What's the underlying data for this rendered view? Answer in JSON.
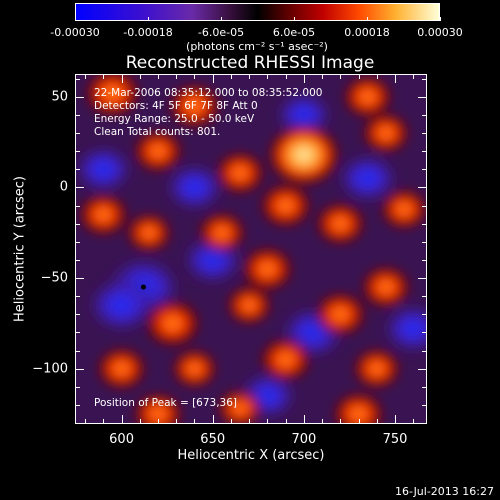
{
  "chart_data": {
    "type": "heatmap",
    "title": "Reconstructed RHESSI Image",
    "xlabel": "Heliocentric X (arcsec)",
    "ylabel": "Heliocentric Y (arcsec)",
    "xlim": [
      575,
      767
    ],
    "ylim": [
      -130,
      62
    ],
    "xticks": [
      "600",
      "650",
      "700",
      "750"
    ],
    "yticks": [
      "50",
      "0",
      "−50",
      "−100"
    ],
    "xtick_values": [
      600,
      650,
      700,
      750
    ],
    "ytick_values": [
      50,
      0,
      -50,
      -100
    ],
    "colorbar": {
      "range": [
        -0.0003,
        0.0003
      ],
      "tick_labels": [
        "-0.00030",
        "-0.00018",
        "-6.0e-05",
        "6.0e-05",
        "0.00018",
        "0.00030"
      ],
      "tick_values": [
        -0.0003,
        -0.00018,
        -6e-05,
        6e-05,
        0.00018,
        0.0003
      ],
      "unit_label": "(photons cm⁻² s⁻¹ asec⁻²)"
    },
    "annotations": {
      "time_range": "22-Mar-2006 08:35:12.000 to 08:35:52.000",
      "detectors": "Detectors: 4F 5F 6F 7F 8F  Att 0",
      "energy_range": "Energy Range: 25.0 - 50.0 keV",
      "method": "Clean      Total counts: 801.",
      "peak": "Position of Peak = [673,36]"
    },
    "peak_position": [
      673,
      36
    ],
    "blobs": [
      {
        "x": 700,
        "y": 18,
        "v": 1.0
      },
      {
        "x": 595,
        "y": 52,
        "v": 0.65
      },
      {
        "x": 640,
        "y": 45,
        "v": 0.55
      },
      {
        "x": 735,
        "y": 50,
        "v": 0.5
      },
      {
        "x": 620,
        "y": 20,
        "v": 0.5
      },
      {
        "x": 745,
        "y": 30,
        "v": 0.45
      },
      {
        "x": 665,
        "y": 8,
        "v": 0.5
      },
      {
        "x": 690,
        "y": -10,
        "v": 0.55
      },
      {
        "x": 755,
        "y": -12,
        "v": 0.45
      },
      {
        "x": 720,
        "y": -20,
        "v": 0.5
      },
      {
        "x": 590,
        "y": -15,
        "v": 0.5
      },
      {
        "x": 615,
        "y": -25,
        "v": 0.4
      },
      {
        "x": 655,
        "y": -25,
        "v": 0.45
      },
      {
        "x": 680,
        "y": -45,
        "v": 0.55
      },
      {
        "x": 745,
        "y": -55,
        "v": 0.5
      },
      {
        "x": 628,
        "y": -75,
        "v": 0.65
      },
      {
        "x": 670,
        "y": -65,
        "v": 0.4
      },
      {
        "x": 720,
        "y": -70,
        "v": 0.55
      },
      {
        "x": 600,
        "y": -100,
        "v": 0.5
      },
      {
        "x": 640,
        "y": -100,
        "v": 0.4
      },
      {
        "x": 690,
        "y": -95,
        "v": 0.55
      },
      {
        "x": 740,
        "y": -100,
        "v": 0.45
      },
      {
        "x": 730,
        "y": -125,
        "v": 0.55
      },
      {
        "x": 620,
        "y": -125,
        "v": 0.5
      },
      {
        "x": 665,
        "y": -122,
        "v": 0.4
      }
    ],
    "dips": [
      {
        "x": 612,
        "y": -55,
        "v": 0.9
      },
      {
        "x": 600,
        "y": -65,
        "v": 0.7
      },
      {
        "x": 705,
        "y": -80,
        "v": 0.6
      },
      {
        "x": 760,
        "y": -78,
        "v": 0.5
      },
      {
        "x": 650,
        "y": -40,
        "v": 0.5
      },
      {
        "x": 640,
        "y": 0,
        "v": 0.45
      },
      {
        "x": 735,
        "y": 5,
        "v": 0.5
      },
      {
        "x": 700,
        "y": 40,
        "v": 0.4
      },
      {
        "x": 680,
        "y": -115,
        "v": 0.45
      },
      {
        "x": 590,
        "y": 10,
        "v": 0.45
      }
    ]
  },
  "footer": "16-Jul-2013 16:27",
  "colors": {
    "low": "#0000ff",
    "mid_negative": "#7b2fa6",
    "zero": "#000000",
    "mid_positive": "#ff3000",
    "high": "#ffffd0"
  }
}
